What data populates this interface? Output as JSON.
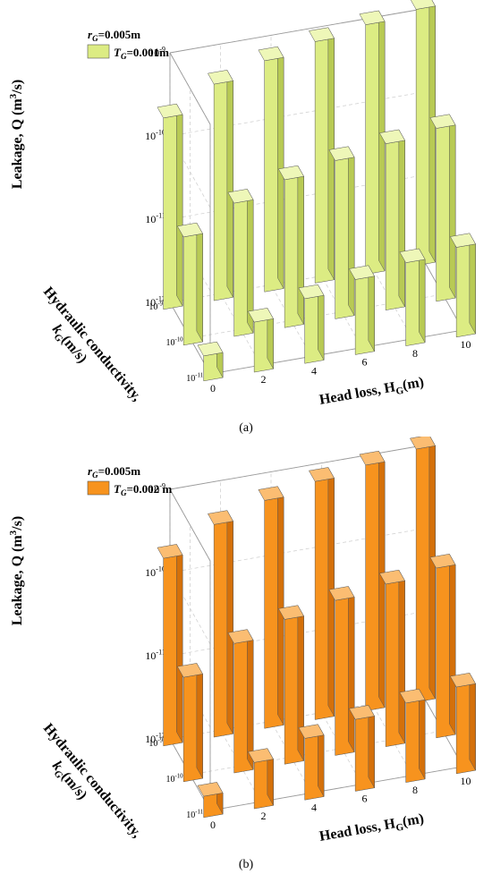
{
  "chart_data": [
    {
      "type": "bar3d",
      "caption": "(a)",
      "legend": {
        "r_text": "=0.005m",
        "t_text": "=0.001m"
      },
      "color": "#dcec83",
      "color_side": "#b8ca54",
      "color_top": "#eef7b8",
      "zlabel": "Leakage, Q (m³/s)",
      "zlabel_parts": {
        "main": "Leakage, Q (m",
        "sup": "3",
        "tail": "/s)"
      },
      "xlabel": "Head loss, H",
      "xlabel_sub": "G",
      "xlabel_tail": "(m)",
      "ylabel_line1": "Hydraulic conductivity,",
      "ylabel_line2_k": "k",
      "ylabel_line2_sub": "G",
      "ylabel_line2_tail": "(m/s)",
      "x_categories": [
        "0",
        "2",
        "4",
        "6",
        "8",
        "10"
      ],
      "y_categories": [
        {
          "base": "10",
          "exp": "-11"
        },
        {
          "base": "10",
          "exp": "-10"
        },
        {
          "base": "10",
          "exp": "-9"
        }
      ],
      "z_ticks": [
        {
          "base": "10",
          "exp": "-12"
        },
        {
          "base": "10",
          "exp": "-11"
        },
        {
          "base": "10",
          "exp": "-10"
        },
        {
          "base": "10",
          "exp": "-9"
        }
      ],
      "zscale": "log",
      "zlim": [
        1e-12,
        1e-09
      ],
      "series": [
        {
          "k": "10^-11",
          "values": [
            2e-12,
            4e-12,
            6e-12,
            8e-12,
            1e-11,
            1.2e-11
          ]
        },
        {
          "k": "10^-10",
          "values": [
            2e-11,
            4e-11,
            6e-11,
            8e-11,
            1e-10,
            1.2e-10
          ]
        },
        {
          "k": "10^-9",
          "values": [
            2e-10,
            4e-10,
            6e-10,
            8e-10,
            1e-09,
            1.2e-09
          ]
        }
      ]
    },
    {
      "type": "bar3d",
      "caption": "(b)",
      "legend": {
        "r_text": "=0.005m",
        "t_text": "=0.002 m"
      },
      "color": "#f7931e",
      "color_side": "#d4700a",
      "color_top": "#fbbd72",
      "zlabel": "Leakage, Q (m³/s)",
      "zlabel_parts": {
        "main": "Leakage, Q (m",
        "sup": "3",
        "tail": "/s)"
      },
      "xlabel": "Head loss, H",
      "xlabel_sub": "G",
      "xlabel_tail": "(m)",
      "ylabel_line1": "Hydraulic conductivity,",
      "ylabel_line2_k": "k",
      "ylabel_line2_sub": "G",
      "ylabel_line2_tail": "(m/s)",
      "x_categories": [
        "0",
        "2",
        "4",
        "6",
        "8",
        "10"
      ],
      "y_categories": [
        {
          "base": "10",
          "exp": "-11"
        },
        {
          "base": "10",
          "exp": "-10"
        },
        {
          "base": "10",
          "exp": "-9"
        }
      ],
      "z_ticks": [
        {
          "base": "10",
          "exp": "-12"
        },
        {
          "base": "10",
          "exp": "-11"
        },
        {
          "base": "10",
          "exp": "-10"
        },
        {
          "base": "10",
          "exp": "-9"
        }
      ],
      "zscale": "log",
      "zlim": [
        1e-12,
        1e-09
      ],
      "series": [
        {
          "k": "10^-11",
          "values": [
            1.8e-12,
            3.6e-12,
            5.5e-12,
            7.3e-12,
            9e-12,
            1.1e-11
          ]
        },
        {
          "k": "10^-10",
          "values": [
            1.8e-11,
            3.6e-11,
            5.5e-11,
            7.3e-11,
            9e-11,
            1.1e-10
          ]
        },
        {
          "k": "10^-9",
          "values": [
            1.8e-10,
            3.6e-10,
            5.5e-10,
            7.3e-10,
            9e-10,
            1.1e-09
          ]
        }
      ]
    }
  ]
}
